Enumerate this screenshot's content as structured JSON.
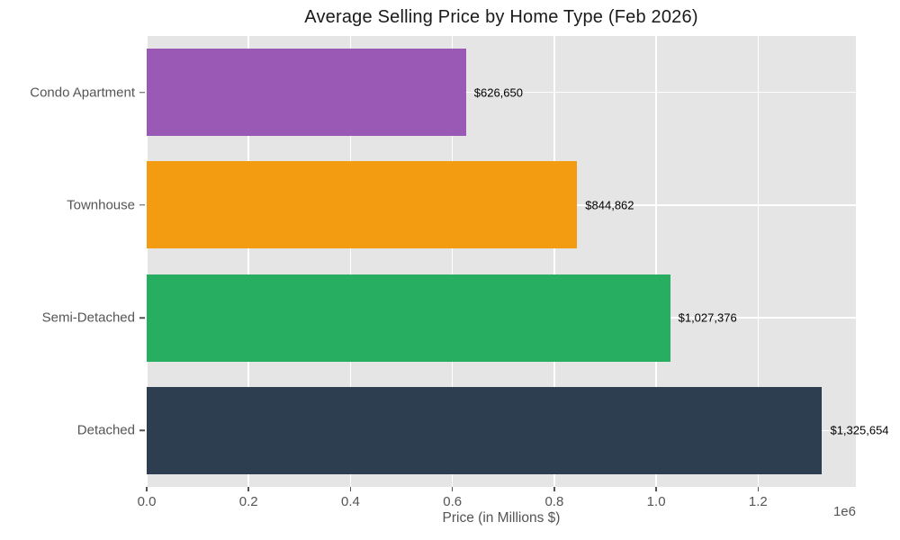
{
  "chart_data": {
    "type": "bar",
    "orientation": "horizontal",
    "title": "Average Selling Price by Home Type (Feb 2026)",
    "categories": [
      "Condo Apartment",
      "Townhouse",
      "Semi-Detached",
      "Detached"
    ],
    "values": [
      626650,
      844862,
      1027376,
      1325654
    ],
    "value_labels": [
      "$626,650",
      "$844,862",
      "$1,027,376",
      "$1,325,654"
    ],
    "bar_colors": [
      "#9b59b6",
      "#f39c12",
      "#27ae60",
      "#2c3e50"
    ],
    "xlabel": "Price (in Millions $)",
    "ylabel": "",
    "xlim": [
      0,
      1391937
    ],
    "x_ticks": [
      0,
      200000,
      400000,
      600000,
      800000,
      1000000,
      1200000
    ],
    "x_tick_labels": [
      "0.0",
      "0.2",
      "0.4",
      "0.6",
      "0.8",
      "1.0",
      "1.2"
    ],
    "axis_offset_label": "1e6",
    "grid": true,
    "legend": false,
    "plot_bg_color": "#e5e5e5",
    "grid_color": "#ffffff",
    "tick_label_color": "#555555",
    "value_label_color": "#000000",
    "title_color": "#1a1a1a"
  }
}
